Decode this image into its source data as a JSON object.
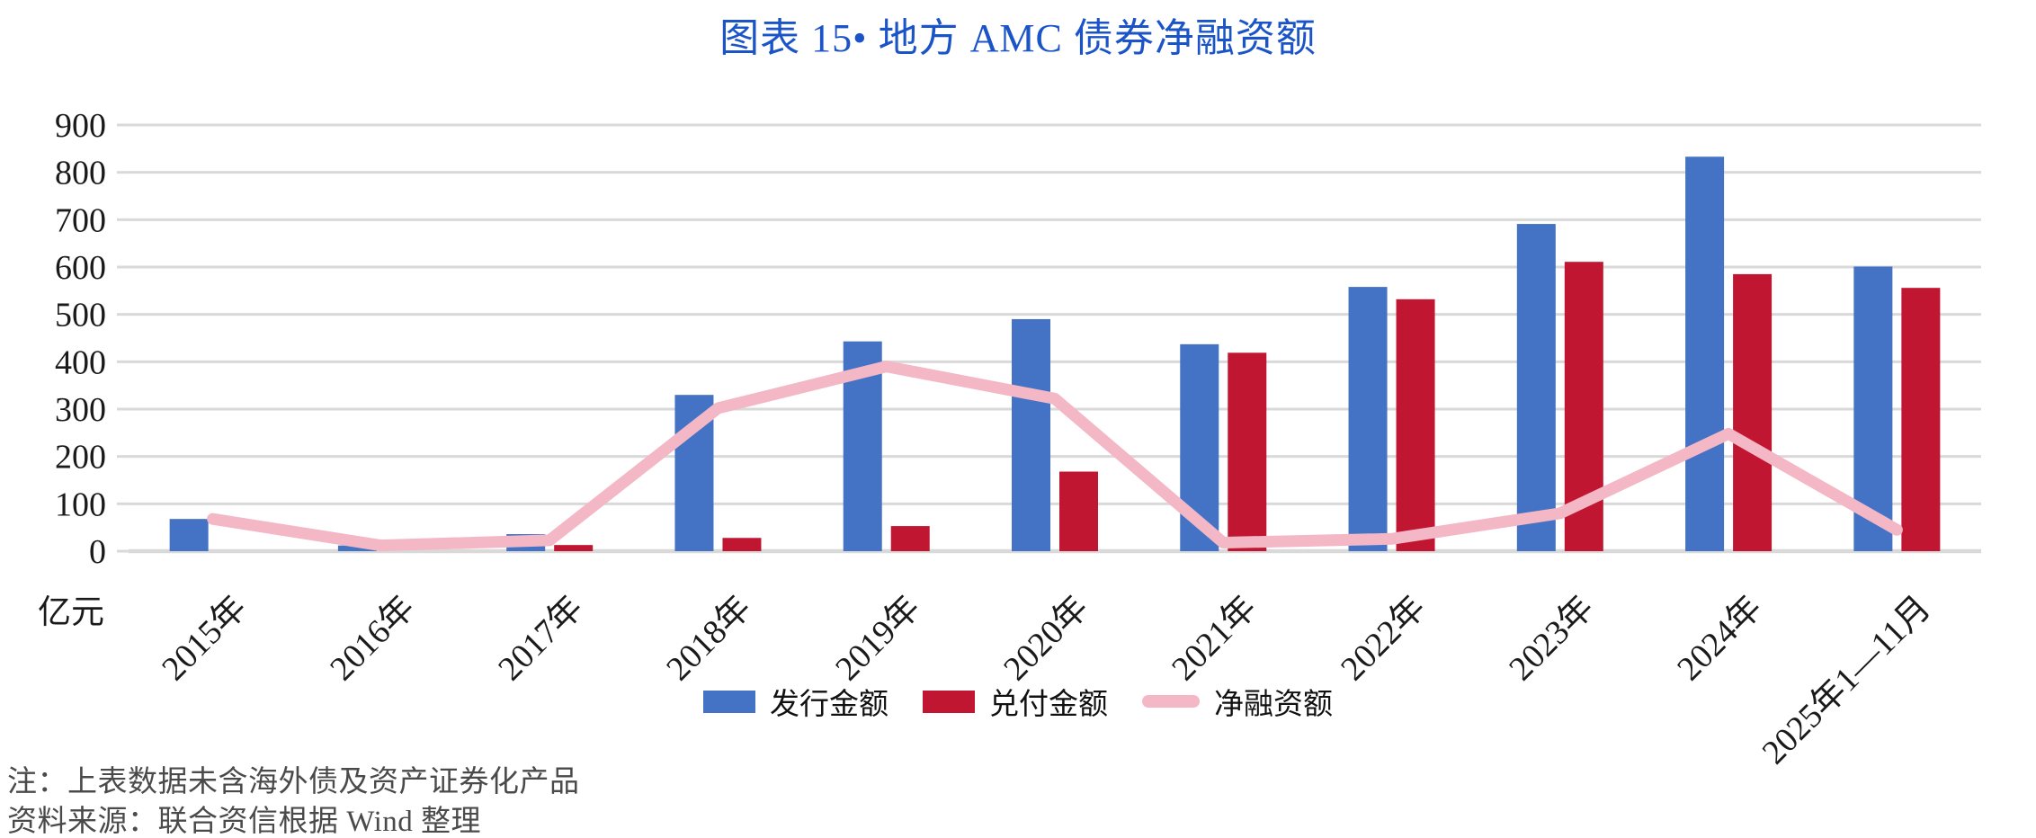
{
  "title": "图表 15• 地方 AMC 债券净融资额",
  "notes": {
    "line1": "注：上表数据未含海外债及资产证券化产品",
    "line2": "资料来源：联合资信根据 Wind 整理"
  },
  "colors": {
    "title": "#1B54C8",
    "issuance_blue": "#4472C4",
    "redemption_red": "#C11631",
    "net_pink": "#F4B7C5",
    "gridline": "#D9D9D9",
    "axis_text": "#1a1a1a",
    "note_text": "#4a4a4a"
  },
  "chart_data": {
    "type": "bar",
    "subtype": "grouped-bars-with-line-overlay",
    "title": "图表 15• 地方 AMC 债券净融资额",
    "unit_label": "亿元",
    "categories": [
      "2015年",
      "2016年",
      "2017年",
      "2018年",
      "2019年",
      "2020年",
      "2021年",
      "2022年",
      "2023年",
      "2024年",
      "2025年1—11月"
    ],
    "series": [
      {
        "name": "发行金额",
        "type": "bar",
        "color": "#4472C4",
        "values": [
          68,
          12,
          36,
          330,
          443,
          490,
          437,
          558,
          691,
          833,
          601
        ]
      },
      {
        "name": "兑付金额",
        "type": "bar",
        "color": "#C11631",
        "values": [
          0,
          0,
          13,
          28,
          53,
          168,
          419,
          532,
          611,
          585,
          556
        ]
      },
      {
        "name": "净融资额",
        "type": "line",
        "color": "#F4B7C5",
        "values": [
          68,
          12,
          23,
          302,
          390,
          322,
          18,
          26,
          80,
          248,
          45
        ]
      }
    ],
    "ylim": [
      0,
      900
    ],
    "yticks": [
      0,
      100,
      200,
      300,
      400,
      500,
      600,
      700,
      800,
      900
    ],
    "grid": true,
    "legend_position": "bottom",
    "x_tick_rotation_deg": 45
  }
}
